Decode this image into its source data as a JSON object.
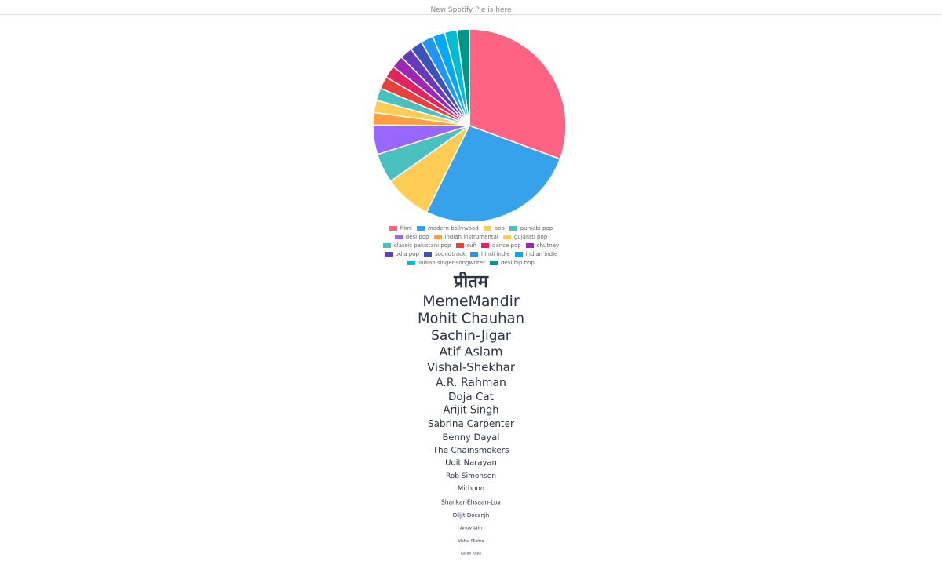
{
  "header": {
    "link": "New Spotify Pie is here"
  },
  "chart_data": {
    "type": "pie",
    "categories": [
      "filmi",
      "modern bollywood",
      "pop",
      "punjabi pop",
      "desi pop",
      "indian instrumental",
      "gujarati pop",
      "classic pakistani pop",
      "sufi",
      "dance pop",
      "chutney",
      "odia pop",
      "soundtrack",
      "hindi indie",
      "indian indie",
      "indian singer-songwriter",
      "desi hip hop"
    ],
    "values": [
      31,
      27,
      8,
      5,
      5,
      2.1,
      2.1,
      2.1,
      2.1,
      2.1,
      2.1,
      2.1,
      2.1,
      2.1,
      2.1,
      2.1,
      2.1
    ],
    "colors": [
      "#ff6384",
      "#36a2eb",
      "#ffcd56",
      "#4bc0c0",
      "#9966ff",
      "#ff9f40",
      "#ffcd56",
      "#4bc0c0",
      "#e8413c",
      "#e0245e",
      "#9c27b0",
      "#673ab7",
      "#3f51b5",
      "#2196f3",
      "#03a9f4",
      "#00bcd4",
      "#009688"
    ]
  },
  "artists": [
    "प्रीतम",
    "MemeMandir",
    "Mohit Chauhan",
    "Sachin-Jigar",
    "Atif Aslam",
    "Vishal-Shekhar",
    "A.R. Rahman",
    "Doja Cat",
    "Arijit Singh",
    "Sabrina Carpenter",
    "Benny Dayal",
    "The Chainsmokers",
    "Udit Narayan",
    "Rob Simonsen",
    "Mithoon",
    "Shankar-Ehsaan-Loy",
    "Diljit Dosanjh",
    "Anuv Jain",
    "Vishal Mishra",
    "Karan Aujla"
  ]
}
